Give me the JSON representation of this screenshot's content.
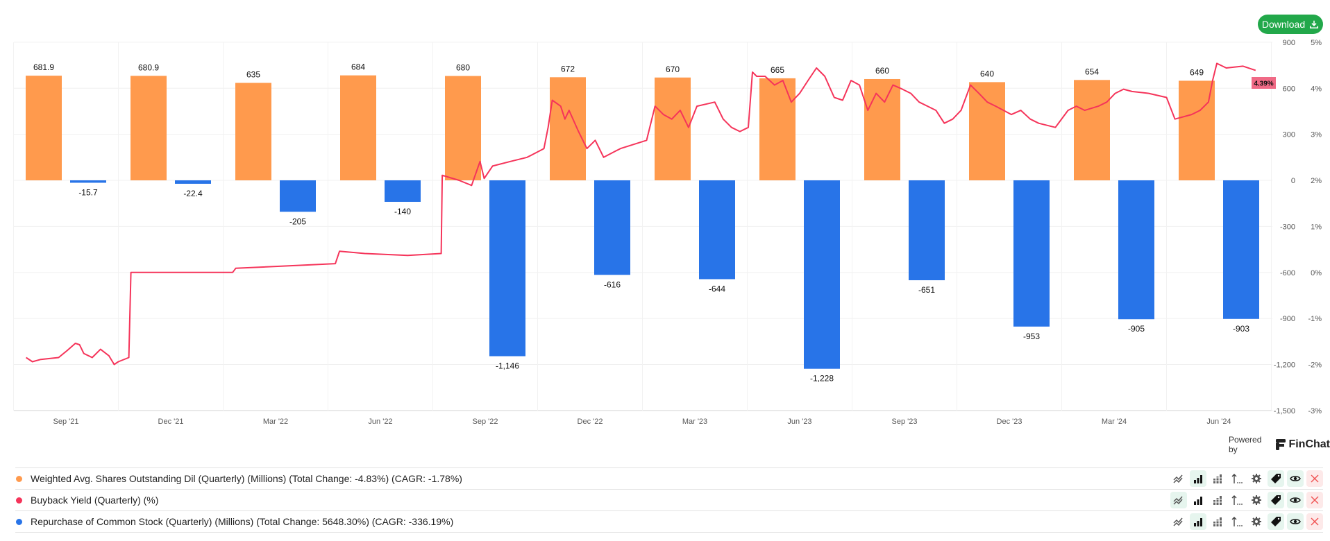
{
  "download_label": "Download",
  "powered_by": "Powered by",
  "brand": "FinChat",
  "badge_value": "4.39%",
  "colors": {
    "shares": "#ff9a4d",
    "yield": "#f5345a",
    "repurchase": "#2874e8",
    "download": "#22a84a"
  },
  "legend": [
    {
      "label": "Weighted Avg. Shares Outstanding Dil (Quarterly) (Millions) (Total Change: -4.83%) (CAGR: -1.78%)",
      "color": "#ff9a4d",
      "active": [
        "bar",
        "tag",
        "eye"
      ]
    },
    {
      "label": "Buyback Yield (Quarterly) (%)",
      "color": "#f5345a",
      "active": [
        "line",
        "tag",
        "eye"
      ]
    },
    {
      "label": "Repurchase of Common Stock (Quarterly) (Millions) (Total Change: 5648.30%) (CAGR: -336.19%)",
      "color": "#2874e8",
      "active": [
        "bar",
        "tag",
        "eye"
      ]
    }
  ],
  "chart_data": {
    "type": "bar",
    "categories": [
      "Sep '21",
      "Dec '21",
      "Mar '22",
      "Jun '22",
      "Sep '22",
      "Dec '22",
      "Mar '23",
      "Jun '23",
      "Sep '23",
      "Dec '23",
      "Mar '24",
      "Jun '24"
    ],
    "left_axis": {
      "ticks": [
        900,
        600,
        300,
        0,
        -300,
        -600,
        -900,
        -1200,
        -1500
      ],
      "tick_labels": [
        "900",
        "600",
        "300",
        "0",
        "-300",
        "-600",
        "-900",
        "-1,200",
        "-1,500"
      ],
      "range": [
        -1500,
        900
      ]
    },
    "right_axis": {
      "ticks": [
        5,
        4,
        3,
        2,
        1,
        0,
        -1,
        -2,
        -3
      ],
      "tick_labels": [
        "5%",
        "4%",
        "3%",
        "2%",
        "1%",
        "0%",
        "-1%",
        "-2%",
        "-3%"
      ],
      "range": [
        -3,
        5
      ]
    },
    "grid": true,
    "legend_position": "bottom",
    "series": [
      {
        "name": "Weighted Avg. Shares Outstanding Dil",
        "type": "bar",
        "axis": "left",
        "values": [
          681.9,
          680.9,
          635,
          684,
          680,
          672,
          670,
          665,
          660,
          640,
          654,
          649
        ],
        "labels": [
          "681.9",
          "680.9",
          "635",
          "684",
          "680",
          "672",
          "670",
          "665",
          "660",
          "640",
          "654",
          "649"
        ]
      },
      {
        "name": "Repurchase of Common Stock",
        "type": "bar",
        "axis": "left",
        "values": [
          -15.7,
          -22.4,
          -205,
          -140,
          -1146,
          -616,
          -644,
          -1228,
          -651,
          -953,
          -905,
          -903
        ],
        "labels": [
          "-15.7",
          "-22.4",
          "-205",
          "-140",
          "-1,146",
          "-616",
          "-644",
          "-1,228",
          "-651",
          "-953",
          "-905",
          "-903"
        ]
      },
      {
        "name": "Buyback Yield",
        "type": "line",
        "axis": "right",
        "x_unit": "quarters since Sep '21",
        "points": [
          [
            -0.38,
            -1.85
          ],
          [
            -0.32,
            -1.94
          ],
          [
            -0.24,
            -1.89
          ],
          [
            -0.07,
            -1.85
          ],
          [
            0.01,
            -1.7
          ],
          [
            0.09,
            -1.54
          ],
          [
            0.13,
            -1.57
          ],
          [
            0.17,
            -1.76
          ],
          [
            0.25,
            -1.85
          ],
          [
            0.33,
            -1.67
          ],
          [
            0.41,
            -1.81
          ],
          [
            0.46,
            -2.0
          ],
          [
            0.5,
            -1.94
          ],
          [
            0.6,
            -1.85
          ],
          [
            0.62,
            0.0
          ],
          [
            1.59,
            0.0
          ],
          [
            1.62,
            0.09
          ],
          [
            2.2,
            0.15
          ],
          [
            2.57,
            0.19
          ],
          [
            2.61,
            0.46
          ],
          [
            2.85,
            0.41
          ],
          [
            3.26,
            0.37
          ],
          [
            3.58,
            0.41
          ],
          [
            3.59,
            2.11
          ],
          [
            3.75,
            2.0
          ],
          [
            3.87,
            1.89
          ],
          [
            3.95,
            2.41
          ],
          [
            3.99,
            2.04
          ],
          [
            4.07,
            2.31
          ],
          [
            4.24,
            2.41
          ],
          [
            4.4,
            2.5
          ],
          [
            4.56,
            2.69
          ],
          [
            4.6,
            3.15
          ],
          [
            4.64,
            3.74
          ],
          [
            4.72,
            3.61
          ],
          [
            4.76,
            3.33
          ],
          [
            4.8,
            3.52
          ],
          [
            4.89,
            3.06
          ],
          [
            4.97,
            2.69
          ],
          [
            5.05,
            2.87
          ],
          [
            5.13,
            2.5
          ],
          [
            5.29,
            2.69
          ],
          [
            5.54,
            2.87
          ],
          [
            5.62,
            3.61
          ],
          [
            5.7,
            3.43
          ],
          [
            5.78,
            3.33
          ],
          [
            5.86,
            3.52
          ],
          [
            5.94,
            3.15
          ],
          [
            6.02,
            3.61
          ],
          [
            6.19,
            3.7
          ],
          [
            6.27,
            3.33
          ],
          [
            6.35,
            3.15
          ],
          [
            6.43,
            3.06
          ],
          [
            6.51,
            3.15
          ],
          [
            6.55,
            4.35
          ],
          [
            6.59,
            4.26
          ],
          [
            6.67,
            4.26
          ],
          [
            6.76,
            4.07
          ],
          [
            6.84,
            4.17
          ],
          [
            6.92,
            3.7
          ],
          [
            7.0,
            3.89
          ],
          [
            7.08,
            4.17
          ],
          [
            7.16,
            4.44
          ],
          [
            7.24,
            4.26
          ],
          [
            7.33,
            3.8
          ],
          [
            7.41,
            3.74
          ],
          [
            7.49,
            4.17
          ],
          [
            7.57,
            4.07
          ],
          [
            7.65,
            3.52
          ],
          [
            7.73,
            3.89
          ],
          [
            7.81,
            3.7
          ],
          [
            7.89,
            4.07
          ],
          [
            7.98,
            3.98
          ],
          [
            8.06,
            3.89
          ],
          [
            8.14,
            3.7
          ],
          [
            8.22,
            3.61
          ],
          [
            8.3,
            3.52
          ],
          [
            8.38,
            3.24
          ],
          [
            8.46,
            3.33
          ],
          [
            8.54,
            3.52
          ],
          [
            8.63,
            4.07
          ],
          [
            8.71,
            3.89
          ],
          [
            8.79,
            3.7
          ],
          [
            8.87,
            3.61
          ],
          [
            9.02,
            3.43
          ],
          [
            9.11,
            3.52
          ],
          [
            9.2,
            3.33
          ],
          [
            9.28,
            3.24
          ],
          [
            9.44,
            3.15
          ],
          [
            9.56,
            3.52
          ],
          [
            9.64,
            3.61
          ],
          [
            9.72,
            3.52
          ],
          [
            9.85,
            3.61
          ],
          [
            9.93,
            3.7
          ],
          [
            10.01,
            3.89
          ],
          [
            10.09,
            3.98
          ],
          [
            10.17,
            3.93
          ],
          [
            10.33,
            3.89
          ],
          [
            10.5,
            3.8
          ],
          [
            10.58,
            3.33
          ],
          [
            10.74,
            3.43
          ],
          [
            10.82,
            3.52
          ],
          [
            10.9,
            3.7
          ],
          [
            10.94,
            4.17
          ],
          [
            10.98,
            4.54
          ],
          [
            11.07,
            4.44
          ],
          [
            11.23,
            4.48
          ],
          [
            11.35,
            4.39
          ]
        ],
        "last_value_label": "4.39%"
      }
    ]
  }
}
